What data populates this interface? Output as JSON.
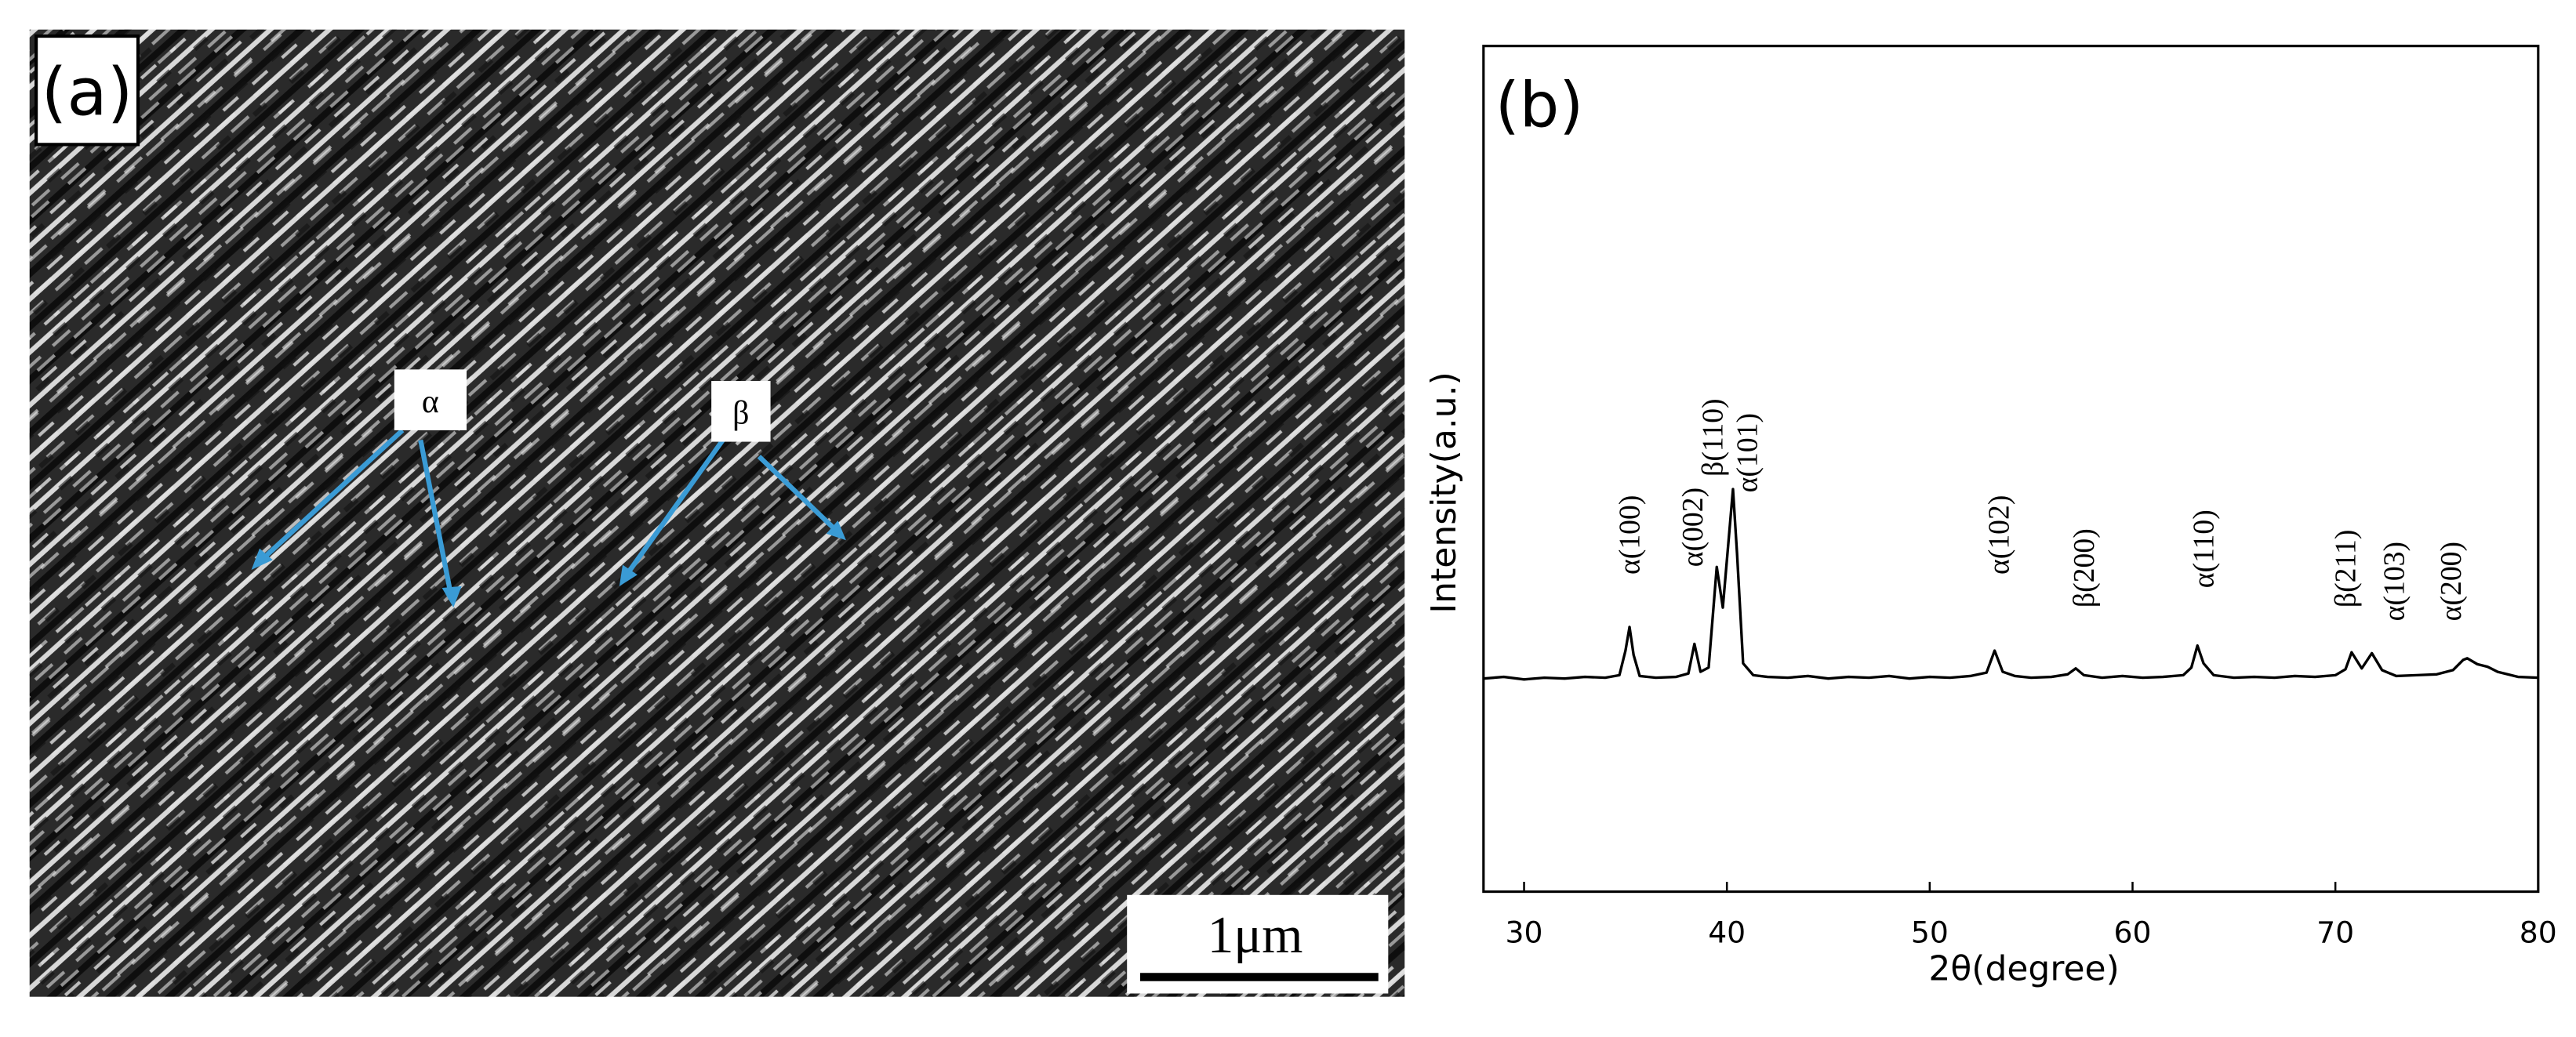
{
  "panel_a": {
    "label": "(a)",
    "markers": [
      "α",
      "β"
    ],
    "scale_bar": "1μm"
  },
  "chart_data": {
    "type": "line",
    "panel_label": "(b)",
    "x_label": "2θ(degree)",
    "y_label": "Intensity(a.u.)",
    "color": "#000000",
    "xlim": [
      28,
      80
    ],
    "xticks": [
      30,
      40,
      50,
      60,
      70,
      80
    ],
    "ylim": [
      0,
      100
    ],
    "x": [
      28,
      29,
      30,
      31,
      32,
      33,
      34,
      34.7,
      35.0,
      35.2,
      35.4,
      35.7,
      36.5,
      37.5,
      38.1,
      38.4,
      38.7,
      39.1,
      39.5,
      39.8,
      40.1,
      40.3,
      40.5,
      40.8,
      41.3,
      42,
      43,
      44,
      45,
      46,
      47,
      48,
      49,
      50,
      51,
      52,
      52.8,
      53.2,
      53.6,
      54.2,
      55,
      56,
      56.8,
      57.2,
      57.6,
      58.5,
      59.5,
      60.5,
      61.5,
      62.5,
      62.9,
      63.2,
      63.5,
      64,
      65,
      66,
      67,
      68,
      69,
      70,
      70.5,
      70.8,
      71.3,
      71.8,
      72.3,
      73,
      74,
      75,
      75.8,
      76.3,
      76.5,
      77,
      77.5,
      78,
      79,
      80
    ],
    "values": [
      25.2,
      25.4,
      25.1,
      25.3,
      25.2,
      25.4,
      25.3,
      25.6,
      28.5,
      31.3,
      28.0,
      25.5,
      25.3,
      25.4,
      25.8,
      29.3,
      26.0,
      26.5,
      38.4,
      33.6,
      42.0,
      47.6,
      40.0,
      27.0,
      25.6,
      25.4,
      25.3,
      25.5,
      25.2,
      25.4,
      25.3,
      25.5,
      25.2,
      25.4,
      25.3,
      25.5,
      25.9,
      28.5,
      26.0,
      25.5,
      25.3,
      25.4,
      25.7,
      26.4,
      25.6,
      25.3,
      25.5,
      25.3,
      25.4,
      25.6,
      26.5,
      29.1,
      27.0,
      25.6,
      25.3,
      25.4,
      25.3,
      25.5,
      25.4,
      25.6,
      26.3,
      28.3,
      26.4,
      28.2,
      26.2,
      25.5,
      25.6,
      25.7,
      26.2,
      27.4,
      27.6,
      26.9,
      26.6,
      26.0,
      25.4,
      25.3
    ],
    "annotations": [
      {
        "text": "α(100)",
        "x": 35.2,
        "y": 37.5
      },
      {
        "text": "α(002)",
        "x": 38.3,
        "y": 38.4
      },
      {
        "text": "β(110)",
        "x": 39.3,
        "y": 49.1
      },
      {
        "text": "α(101)",
        "x": 41.0,
        "y": 47.2
      },
      {
        "text": "α(102)",
        "x": 53.4,
        "y": 37.5
      },
      {
        "text": "β(200)",
        "x": 57.6,
        "y": 33.6
      },
      {
        "text": "α(110)",
        "x": 63.5,
        "y": 35.9
      },
      {
        "text": "β(211)",
        "x": 70.5,
        "y": 33.6
      },
      {
        "text": "α(103)",
        "x": 72.9,
        "y": 32.0
      },
      {
        "text": "α(200)",
        "x": 75.7,
        "y": 32.0
      }
    ]
  }
}
